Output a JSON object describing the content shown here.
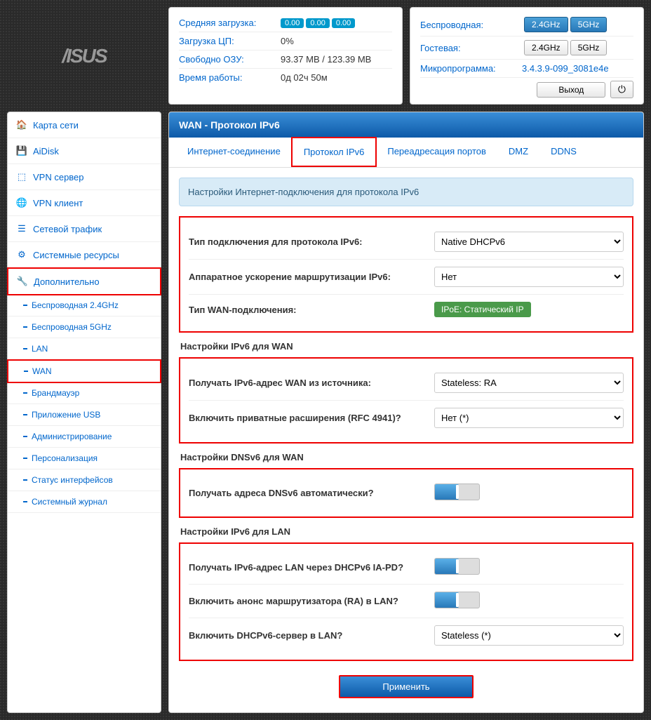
{
  "logo": "/ISUS",
  "stats1": {
    "r1": {
      "label": "Средняя загрузка:",
      "v1": "0.00",
      "v2": "0.00",
      "v3": "0.00"
    },
    "r2": {
      "label": "Загрузка ЦП:",
      "val": "0%"
    },
    "r3": {
      "label": "Свободно ОЗУ:",
      "val": "93.37 MB / 123.39 MB"
    },
    "r4": {
      "label": "Время работы:",
      "val": "0д 02ч 50м"
    }
  },
  "stats2": {
    "r1": {
      "label": "Беспроводная:",
      "b1": "2.4GHz",
      "b2": "5GHz"
    },
    "r2": {
      "label": "Гостевая:",
      "b1": "2.4GHz",
      "b2": "5GHz"
    },
    "r3": {
      "label": "Микропрограмма:",
      "val": "3.4.3.9-099_3081e4e"
    },
    "logout": "Выход"
  },
  "nav": {
    "i1": "Карта сети",
    "i2": "AiDisk",
    "i3": "VPN сервер",
    "i4": "VPN клиент",
    "i5": "Сетевой трафик",
    "i6": "Системные ресурсы",
    "i7": "Дополнительно",
    "s1": "Беспроводная 2.4GHz",
    "s2": "Беспроводная 5GHz",
    "s3": "LAN",
    "s4": "WAN",
    "s5": "Брандмауэр",
    "s6": "Приложение USB",
    "s7": "Администрирование",
    "s8": "Персонализация",
    "s9": "Статус интерфейсов",
    "s10": "Системный журнал"
  },
  "page": {
    "title": "WAN - Протокол IPv6",
    "tabs": {
      "t1": "Интернет-соединение",
      "t2": "Протокол IPv6",
      "t3": "Переадресация портов",
      "t4": "DMZ",
      "t5": "DDNS"
    },
    "info": "Настройки Интернет-подключения для протокола IPv6",
    "sec1": {
      "f1": {
        "label": "Тип подключения для протокола IPv6:",
        "val": "Native DHCPv6"
      },
      "f2": {
        "label": "Аппаратное ускорение маршрутизации IPv6:",
        "val": "Нет"
      },
      "f3": {
        "label": "Тип WAN-подключения:",
        "val": "IPoE: Статический IP"
      }
    },
    "sec2": {
      "title": "Настройки IPv6 для WAN",
      "f1": {
        "label": "Получать IPv6-адрес WAN из источника:",
        "val": "Stateless: RA"
      },
      "f2": {
        "label": "Включить приватные расширения (RFC 4941)?",
        "val": "Нет (*)"
      }
    },
    "sec3": {
      "title": "Настройки DNSv6 для WAN",
      "f1": {
        "label": "Получать адреса DNSv6 автоматически?"
      }
    },
    "sec4": {
      "title": "Настройки IPv6 для LAN",
      "f1": {
        "label": "Получать IPv6-адрес LAN через DHCPv6 IA-PD?"
      },
      "f2": {
        "label": "Включить анонс маршрутизатора (RA) в LAN?"
      },
      "f3": {
        "label": "Включить DHCPv6-сервер в LAN?",
        "val": "Stateless (*)"
      }
    },
    "submit": "Применить"
  }
}
